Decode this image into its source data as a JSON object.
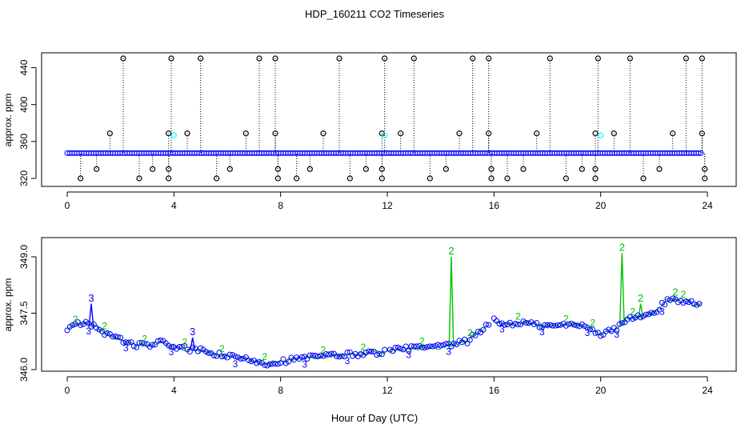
{
  "title": "HDP_160211  CO2 Timeseries",
  "xlabel": "Hour of Day (UTC)",
  "colors": {
    "black": "#000000",
    "blue": "#0000ff",
    "green": "#00c000",
    "cyan": "#00ffff",
    "frame": "#000000"
  },
  "chart_data": [
    {
      "type": "scatter",
      "name": "top-panel",
      "ylabel": "approx. ppm",
      "xlim": [
        0,
        24
      ],
      "ylim": [
        320,
        450
      ],
      "x_ticks": [
        0,
        4,
        8,
        12,
        16,
        20,
        24
      ],
      "y_ticks": [
        320,
        360,
        400,
        440
      ],
      "flagged_high": [
        2.1,
        3.9,
        5.0,
        7.2,
        7.8,
        10.2,
        11.9,
        13.0,
        15.2,
        15.8,
        18.1,
        19.9,
        21.1,
        23.2,
        23.8
      ],
      "flagged_mid": [
        1.6,
        3.8,
        4.5,
        6.7,
        7.8,
        9.6,
        11.8,
        12.5,
        14.7,
        15.8,
        17.6,
        19.8,
        20.5,
        22.7,
        23.8
      ],
      "flagged_low": [
        0.5,
        1.1,
        2.7,
        3.2,
        3.8,
        3.8,
        5.6,
        6.1,
        7.9,
        7.9,
        8.6,
        9.1,
        10.6,
        11.2,
        11.8,
        11.8,
        13.6,
        14.2,
        15.9,
        15.9,
        16.5,
        17.1,
        18.7,
        19.3,
        19.8,
        19.8,
        21.6,
        22.2,
        23.9,
        23.9
      ],
      "flag_values": {
        "high": 448,
        "mid": 368,
        "low1": 320,
        "low2": 330
      },
      "cyan_points": [
        [
          4.0,
          366
        ],
        [
          11.9,
          366
        ],
        [
          20.0,
          366
        ]
      ],
      "baseline": {
        "x_start": 0,
        "x_end": 23.8,
        "value": 347
      }
    },
    {
      "type": "line",
      "name": "bottom-panel",
      "ylabel": "approx. ppm",
      "xlim": [
        0,
        24
      ],
      "ylim": [
        346.0,
        349.0
      ],
      "x_ticks": [
        0,
        4,
        8,
        12,
        16,
        20,
        24
      ],
      "y_ticks": [
        346.0,
        347.5,
        349.0
      ],
      "anchors": [
        [
          0.0,
          347.05
        ],
        [
          0.5,
          347.25
        ],
        [
          1.0,
          347.15
        ],
        [
          1.5,
          346.95
        ],
        [
          2.0,
          346.8
        ],
        [
          2.5,
          346.65
        ],
        [
          3.0,
          346.65
        ],
        [
          3.5,
          346.72
        ],
        [
          4.0,
          346.62
        ],
        [
          4.5,
          346.55
        ],
        [
          5.0,
          346.5
        ],
        [
          5.5,
          346.42
        ],
        [
          6.0,
          346.35
        ],
        [
          7.0,
          346.25
        ],
        [
          7.5,
          346.15
        ],
        [
          8.0,
          346.22
        ],
        [
          9.0,
          346.32
        ],
        [
          10.0,
          346.38
        ],
        [
          11.0,
          346.42
        ],
        [
          12.0,
          346.48
        ],
        [
          12.5,
          346.55
        ],
        [
          13.0,
          346.58
        ],
        [
          14.0,
          346.6
        ],
        [
          15.0,
          346.75
        ],
        [
          15.5,
          347.05
        ],
        [
          16.0,
          347.3
        ],
        [
          16.5,
          347.2
        ],
        [
          17.0,
          347.25
        ],
        [
          17.5,
          347.2
        ],
        [
          18.0,
          347.15
        ],
        [
          19.0,
          347.2
        ],
        [
          19.5,
          347.15
        ],
        [
          20.0,
          346.95
        ],
        [
          20.5,
          347.05
        ],
        [
          21.0,
          347.35
        ],
        [
          21.5,
          347.4
        ],
        [
          22.0,
          347.5
        ],
        [
          22.5,
          347.85
        ],
        [
          23.0,
          347.85
        ],
        [
          23.5,
          347.75
        ],
        [
          23.8,
          347.75
        ]
      ],
      "series": [
        {
          "name": "3",
          "color": "#0000ff",
          "spikes": [
            [
              0.9,
              347.75
            ],
            [
              4.7,
              346.85
            ]
          ]
        },
        {
          "name": "2",
          "color": "#00c000",
          "spikes": [
            [
              14.4,
              349.0
            ],
            [
              20.8,
              349.1
            ],
            [
              21.5,
              347.75
            ],
            [
              22.8,
              347.9
            ]
          ]
        }
      ]
    }
  ]
}
